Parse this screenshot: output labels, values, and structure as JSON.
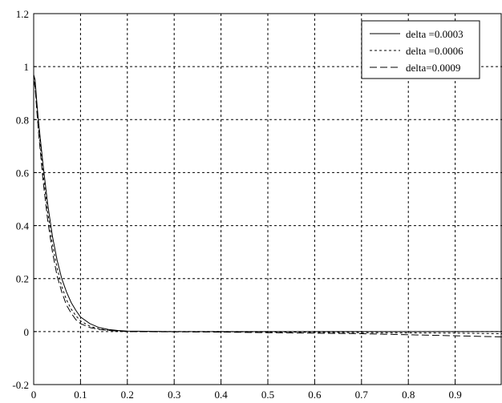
{
  "chart_data": {
    "type": "line",
    "title": "",
    "xlabel": "",
    "ylabel": "",
    "xlim": [
      0,
      1
    ],
    "ylim": [
      -0.2,
      1.2
    ],
    "x_ticks": [
      "0",
      "0.1",
      "0.2",
      "0.3",
      "0.4",
      "0.5",
      "0.6",
      "0.7",
      "0.8",
      "0.9"
    ],
    "x_tick_values": [
      0,
      0.1,
      0.2,
      0.3,
      0.4,
      0.5,
      0.6,
      0.7,
      0.8,
      0.9
    ],
    "y_ticks": [
      "-0.2",
      "0",
      "0.2",
      "0.4",
      "0.6",
      "0.8",
      "1",
      "1.2"
    ],
    "y_tick_values": [
      -0.2,
      0,
      0.2,
      0.4,
      0.6,
      0.8,
      1,
      1.2
    ],
    "grid": true,
    "legend_position": "top-right",
    "series": [
      {
        "name": "delta =0.0003",
        "style": "solid",
        "color": "#000000",
        "x": [
          0,
          0.003,
          0.006,
          0.01,
          0.02,
          0.03,
          0.04,
          0.05,
          0.06,
          0.07,
          0.08,
          0.09,
          0.1,
          0.12,
          0.14,
          0.16,
          0.18,
          0.2,
          0.24,
          0.3,
          0.4,
          0.5,
          0.6,
          0.7,
          0.8,
          0.9,
          1.0
        ],
        "y": [
          0.97,
          0.95,
          0.88,
          0.8,
          0.63,
          0.48,
          0.36,
          0.27,
          0.2,
          0.15,
          0.11,
          0.08,
          0.055,
          0.03,
          0.015,
          0.008,
          0.004,
          0.002,
          0.001,
          0.0,
          0.0,
          0.0,
          0.0,
          0.0,
          0.0,
          0.0,
          0.0
        ]
      },
      {
        "name": "delta =0.0006",
        "style": "dotted",
        "color": "#000000",
        "x": [
          0,
          0.003,
          0.006,
          0.01,
          0.02,
          0.03,
          0.04,
          0.05,
          0.06,
          0.07,
          0.08,
          0.09,
          0.1,
          0.12,
          0.14,
          0.16,
          0.2,
          0.3,
          0.4,
          0.5,
          0.6,
          0.7,
          0.8,
          0.9,
          1.0
        ],
        "y": [
          0.96,
          0.93,
          0.86,
          0.78,
          0.6,
          0.45,
          0.33,
          0.24,
          0.17,
          0.12,
          0.085,
          0.06,
          0.04,
          0.02,
          0.01,
          0.005,
          0.0,
          0.0,
          0.0,
          -0.002,
          -0.003,
          -0.004,
          -0.005,
          -0.006,
          -0.008
        ]
      },
      {
        "name": "delta=0.0009",
        "style": "dashed",
        "color": "#000000",
        "x": [
          0,
          0.003,
          0.006,
          0.01,
          0.02,
          0.03,
          0.04,
          0.05,
          0.06,
          0.07,
          0.08,
          0.09,
          0.1,
          0.12,
          0.14,
          0.16,
          0.2,
          0.3,
          0.4,
          0.5,
          0.6,
          0.7,
          0.8,
          0.9,
          1.0
        ],
        "y": [
          0.95,
          0.92,
          0.85,
          0.76,
          0.57,
          0.42,
          0.3,
          0.21,
          0.15,
          0.1,
          0.07,
          0.045,
          0.03,
          0.015,
          0.008,
          0.004,
          0.0,
          -0.001,
          -0.002,
          -0.004,
          -0.006,
          -0.008,
          -0.012,
          -0.016,
          -0.02
        ]
      }
    ]
  }
}
